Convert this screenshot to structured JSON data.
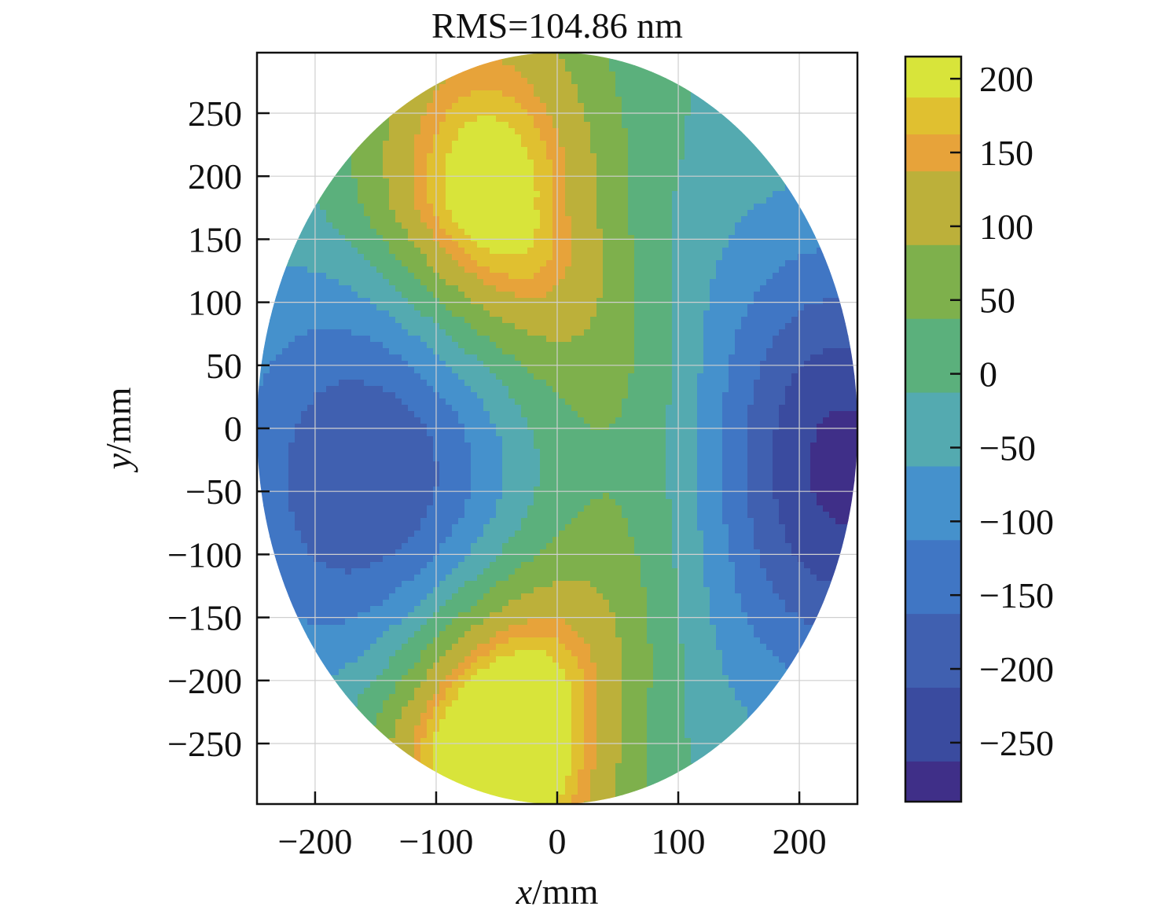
{
  "chart_data": {
    "type": "heatmap",
    "title": "RMS=104.86 nm",
    "xlabel": {
      "var": "x",
      "unit": "/mm"
    },
    "ylabel": {
      "var": "y",
      "unit": "/mm"
    },
    "xlim": [
      -248,
      248
    ],
    "ylim": [
      -298,
      298
    ],
    "x_ticks": [
      -200,
      -100,
      0,
      100,
      200
    ],
    "y_ticks": [
      250,
      200,
      150,
      100,
      50,
      0,
      -50,
      -100,
      -150,
      -200,
      -250
    ],
    "grid": true,
    "colorbar": {
      "range": [
        -290,
        215
      ],
      "ticks": [
        200,
        150,
        100,
        50,
        0,
        -50,
        -100,
        -150,
        -200,
        -250
      ],
      "levels": [
        {
          "lo": -290,
          "hi": -262.5,
          "color": "#3f2f88"
        },
        {
          "lo": -262.5,
          "hi": -212.5,
          "color": "#3a4b9f"
        },
        {
          "lo": -212.5,
          "hi": -162.5,
          "color": "#4060b0"
        },
        {
          "lo": -162.5,
          "hi": -112.5,
          "color": "#4076c4"
        },
        {
          "lo": -112.5,
          "hi": -62.5,
          "color": "#4591cc"
        },
        {
          "lo": -62.5,
          "hi": -12.5,
          "color": "#54aab0"
        },
        {
          "lo": -12.5,
          "hi": 37.5,
          "color": "#5bb07c"
        },
        {
          "lo": 37.5,
          "hi": 87.5,
          "color": "#7eb04c"
        },
        {
          "lo": 87.5,
          "hi": 137.5,
          "color": "#bcb03a"
        },
        {
          "lo": 137.5,
          "hi": 162.5,
          "color": "#e7a33a"
        },
        {
          "lo": 162.5,
          "hi": 187.5,
          "color": "#e0c030"
        },
        {
          "lo": 187.5,
          "hi": 215,
          "color": "#d8e43a"
        }
      ]
    },
    "aperture": {
      "shape": "ellipse",
      "center": [
        0,
        0
      ],
      "semi_axes": [
        248,
        298
      ]
    },
    "surface_features": [
      {
        "kind": "peak",
        "x": -50,
        "y": -240,
        "value": 205
      },
      {
        "kind": "peak",
        "x": -60,
        "y": 175,
        "value": 150
      },
      {
        "kind": "valley",
        "x": 235,
        "y": -30,
        "value": -285
      },
      {
        "kind": "valley",
        "x": -150,
        "y": -40,
        "value": -220
      }
    ]
  }
}
